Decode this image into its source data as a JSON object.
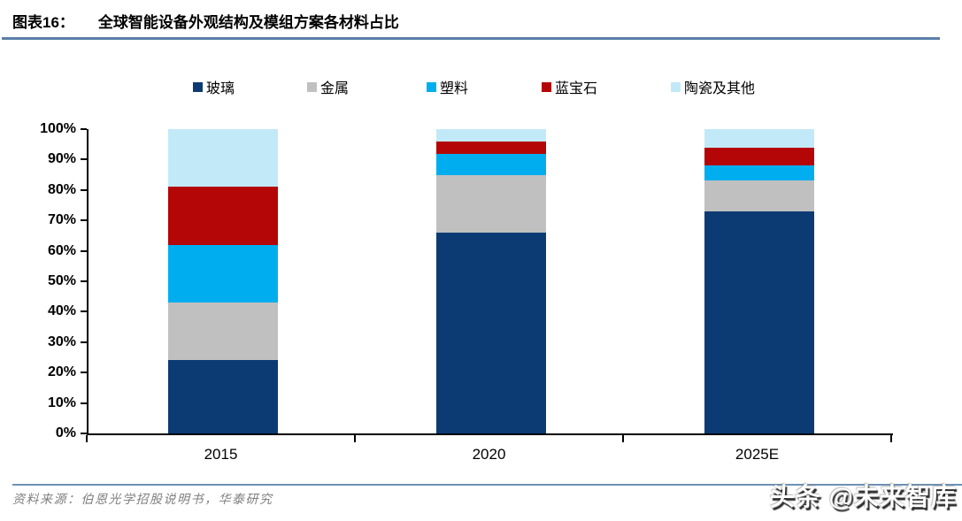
{
  "header": {
    "label": "图表16：",
    "title": "全球智能设备外观结构及模组方案各材料占比"
  },
  "chart_data": {
    "type": "bar",
    "stacked": true,
    "title": "全球智能设备外观结构及模组方案各材料占比",
    "categories": [
      "2015",
      "2020",
      "2025E"
    ],
    "series": [
      {
        "name": "玻璃",
        "color": "#0C3B74",
        "values": [
          24,
          66,
          73
        ]
      },
      {
        "name": "金属",
        "color": "#C0C0C0",
        "values": [
          19,
          19,
          10
        ]
      },
      {
        "name": "塑料",
        "color": "#00AEEF",
        "values": [
          19,
          7,
          5
        ]
      },
      {
        "name": "蓝宝石",
        "color": "#B40606",
        "values": [
          19,
          4,
          6
        ]
      },
      {
        "name": "陶瓷及其他",
        "color": "#C2E9F8",
        "values": [
          19,
          4,
          6
        ]
      }
    ],
    "ylim": [
      0,
      100
    ],
    "yticks": [
      "0%",
      "10%",
      "20%",
      "30%",
      "40%",
      "50%",
      "60%",
      "70%",
      "80%",
      "90%",
      "100%"
    ],
    "xlabel": "",
    "ylabel": "",
    "grid": false,
    "legend_position": "top",
    "unit": "percent"
  },
  "footer": {
    "source": "资料来源：伯恩光学招股说明书，华泰研究",
    "watermark": "头条 @未来智库"
  }
}
